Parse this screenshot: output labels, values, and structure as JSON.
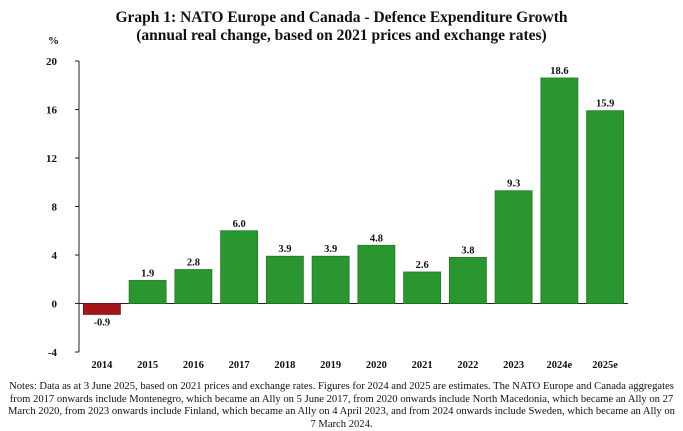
{
  "chart_data": {
    "type": "bar",
    "title": "Graph 1: NATO Europe and Canada - Defence Expenditure Growth",
    "subtitle": "(annual real change, based on 2021 prices and exchange rates)",
    "ylabel": "%",
    "xlabel": "",
    "ylim": [
      -4,
      20
    ],
    "yticks": [
      -4,
      0,
      4,
      8,
      12,
      16,
      20
    ],
    "ytick_labels": [
      "-4",
      "0",
      "4",
      "8",
      "12",
      "16",
      "20"
    ],
    "grid": false,
    "categories": [
      "2014",
      "2015",
      "2016",
      "2017",
      "2018",
      "2019",
      "2020",
      "2021",
      "2022",
      "2023",
      "2024e",
      "2025e"
    ],
    "values": [
      -0.9,
      1.9,
      2.8,
      6.0,
      3.9,
      3.9,
      4.8,
      2.6,
      3.8,
      9.3,
      18.6,
      15.9
    ],
    "data_labels": [
      "-0.9",
      "1.9",
      "2.8",
      "6.0",
      "3.9",
      "3.9",
      "4.8",
      "2.6",
      "3.8",
      "9.3",
      "18.6",
      "15.9"
    ],
    "colors": {
      "positive": "#2a9630",
      "positive_edge": "#1e7a24",
      "negative": "#a41418",
      "negative_edge": "#7a0d10",
      "axis": "#222222"
    }
  },
  "notes": "Notes: Data as at 3 June 2025, based on 2021 prices and exchange rates. Figures for 2024 and 2025 are estimates. The NATO Europe and Canada aggregates from 2017 onwards include Montenegro, which became an Ally on 5 June 2017, from 2020 onwards include North Macedonia, which became an Ally on 27 March 2020, from 2023 onwards include Finland, which became an Ally on 4 April 2023, and from 2024 onwards include Sweden, which became an Ally on 7 March 2024."
}
